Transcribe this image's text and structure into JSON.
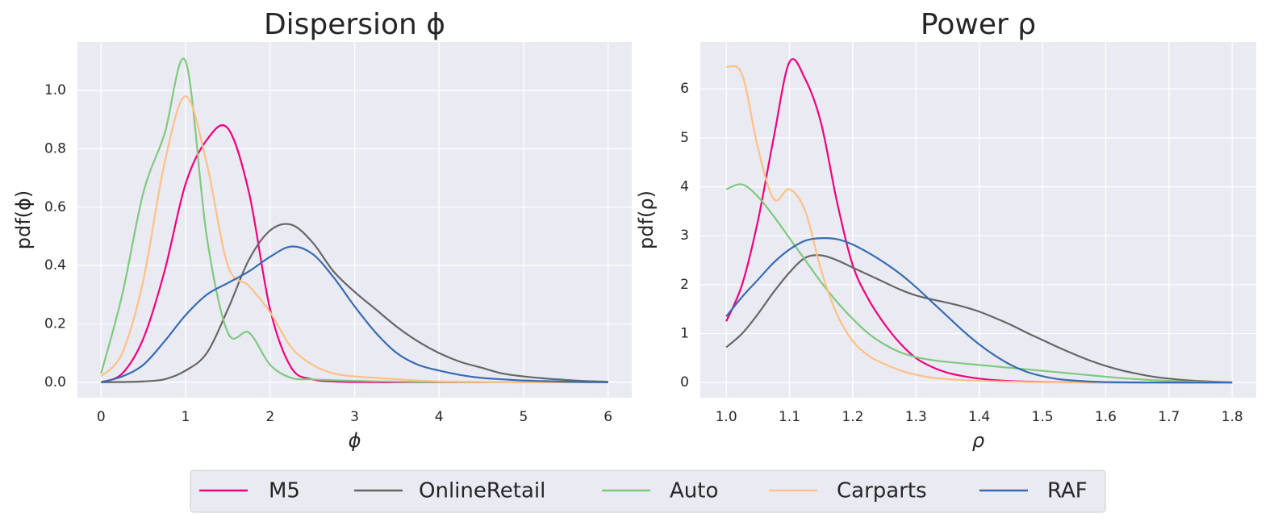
{
  "chart_data": [
    {
      "type": "line",
      "title": "Dispersion ϕ",
      "xlabel": "ϕ",
      "ylabel": "pdf(ϕ)",
      "x": [
        0,
        0.25,
        0.5,
        0.75,
        1,
        1.25,
        1.5,
        1.75,
        2,
        2.25,
        2.5,
        2.75,
        3,
        3.25,
        3.5,
        3.75,
        4,
        4.25,
        4.5,
        4.75,
        5,
        5.25,
        5.5,
        5.75,
        6
      ],
      "series": [
        {
          "name": "M5",
          "color": "#f0027f",
          "values": [
            0,
            0.03,
            0.15,
            0.38,
            0.68,
            0.83,
            0.87,
            0.65,
            0.25,
            0.05,
            0.01,
            0.003,
            0.001,
            0,
            0,
            0,
            0,
            0,
            0,
            0,
            0,
            0,
            0,
            0,
            0
          ]
        },
        {
          "name": "OnlineRetail",
          "color": "#666666",
          "values": [
            0,
            0.001,
            0.003,
            0.01,
            0.04,
            0.1,
            0.25,
            0.42,
            0.52,
            0.54,
            0.48,
            0.38,
            0.31,
            0.25,
            0.19,
            0.14,
            0.1,
            0.07,
            0.05,
            0.03,
            0.02,
            0.013,
            0.008,
            0.004,
            0.002
          ]
        },
        {
          "name": "Auto",
          "color": "#7fc97f",
          "values": [
            0.03,
            0.3,
            0.65,
            0.85,
            1.1,
            0.5,
            0.17,
            0.17,
            0.06,
            0.015,
            0.01,
            0.007,
            0.005,
            0.003,
            0.002,
            0.001,
            0.001,
            0,
            0,
            0,
            0,
            0,
            0,
            0,
            0
          ]
        },
        {
          "name": "Carparts",
          "color": "#fdc086",
          "values": [
            0.02,
            0.1,
            0.35,
            0.75,
            0.98,
            0.75,
            0.4,
            0.33,
            0.24,
            0.12,
            0.06,
            0.03,
            0.02,
            0.015,
            0.01,
            0.006,
            0.003,
            0.002,
            0.001,
            0,
            0,
            0,
            0,
            0,
            0
          ]
        },
        {
          "name": "RAF",
          "color": "#386cb0",
          "values": [
            0,
            0.02,
            0.06,
            0.14,
            0.23,
            0.3,
            0.34,
            0.38,
            0.43,
            0.465,
            0.44,
            0.36,
            0.26,
            0.17,
            0.1,
            0.06,
            0.04,
            0.025,
            0.015,
            0.01,
            0.006,
            0.004,
            0.002,
            0.001,
            0
          ]
        }
      ],
      "xlim": [
        -0.28,
        6.28
      ],
      "ylim": [
        -0.053,
        1.166
      ],
      "xticks": [
        0,
        1,
        2,
        3,
        4,
        5,
        6
      ],
      "yticks": [
        {
          "value": 0,
          "label": "0.0"
        },
        0.2,
        0.4,
        0.6,
        0.8,
        {
          "value": 1,
          "label": "1.0"
        }
      ],
      "grid": true,
      "legend": "bottom"
    },
    {
      "type": "line",
      "title": "Power ρ",
      "xlabel": "ρ",
      "ylabel": "pdf(ρ)",
      "x": [
        1,
        1.025,
        1.05,
        1.075,
        1.1,
        1.125,
        1.15,
        1.175,
        1.2,
        1.225,
        1.25,
        1.275,
        1.3,
        1.325,
        1.35,
        1.375,
        1.4,
        1.425,
        1.45,
        1.475,
        1.5,
        1.525,
        1.55,
        1.575,
        1.6,
        1.625,
        1.65,
        1.675,
        1.7,
        1.725,
        1.75,
        1.775,
        1.8
      ],
      "series": [
        {
          "name": "M5",
          "color": "#f0027f",
          "values": [
            1.25,
            2.0,
            3.3,
            5.0,
            6.55,
            6.2,
            5.3,
            3.7,
            2.4,
            1.7,
            1.2,
            0.8,
            0.5,
            0.32,
            0.2,
            0.13,
            0.08,
            0.05,
            0.03,
            0.02,
            0.012,
            0.008,
            0.005,
            0.003,
            0.002,
            0.001,
            0,
            0,
            0,
            0,
            0,
            0,
            0
          ]
        },
        {
          "name": "OnlineRetail",
          "color": "#666666",
          "values": [
            0.72,
            1.0,
            1.4,
            1.85,
            2.25,
            2.55,
            2.6,
            2.5,
            2.35,
            2.2,
            2.05,
            1.9,
            1.78,
            1.7,
            1.63,
            1.55,
            1.45,
            1.32,
            1.18,
            1.02,
            0.87,
            0.72,
            0.58,
            0.45,
            0.34,
            0.25,
            0.18,
            0.12,
            0.08,
            0.05,
            0.03,
            0.015,
            0.005
          ]
        },
        {
          "name": "Auto",
          "color": "#7fc97f",
          "values": [
            3.95,
            4.05,
            3.8,
            3.4,
            2.95,
            2.5,
            2.05,
            1.65,
            1.3,
            1.0,
            0.78,
            0.62,
            0.52,
            0.46,
            0.42,
            0.39,
            0.36,
            0.33,
            0.3,
            0.27,
            0.24,
            0.21,
            0.18,
            0.15,
            0.12,
            0.09,
            0.07,
            0.05,
            0.035,
            0.02,
            0.012,
            0.006,
            0.003
          ]
        },
        {
          "name": "Carparts",
          "color": "#fdc086",
          "values": [
            6.45,
            6.3,
            4.8,
            3.75,
            3.95,
            3.5,
            2.3,
            1.4,
            0.85,
            0.55,
            0.38,
            0.25,
            0.16,
            0.1,
            0.07,
            0.05,
            0.035,
            0.025,
            0.018,
            0.012,
            0.008,
            0.005,
            0.003,
            0.002,
            0.001,
            0,
            0,
            0,
            0,
            0,
            0,
            0,
            0
          ]
        },
        {
          "name": "RAF",
          "color": "#386cb0",
          "values": [
            1.35,
            1.75,
            2.1,
            2.45,
            2.72,
            2.9,
            2.95,
            2.93,
            2.82,
            2.65,
            2.45,
            2.22,
            1.95,
            1.65,
            1.35,
            1.05,
            0.78,
            0.55,
            0.36,
            0.22,
            0.13,
            0.07,
            0.04,
            0.02,
            0.01,
            0.005,
            0.003,
            0.002,
            0.001,
            0.001,
            0,
            0,
            0
          ]
        }
      ],
      "xlim": [
        0.959,
        1.838
      ],
      "ylim": [
        -0.31,
        6.96
      ],
      "xticks": [
        {
          "value": 1,
          "label": "1.0"
        },
        1.1,
        1.2,
        1.3,
        1.4,
        1.5,
        1.6,
        1.7,
        1.8
      ],
      "yticks": [
        0,
        1,
        2,
        3,
        4,
        5,
        6
      ],
      "grid": true
    }
  ]
}
